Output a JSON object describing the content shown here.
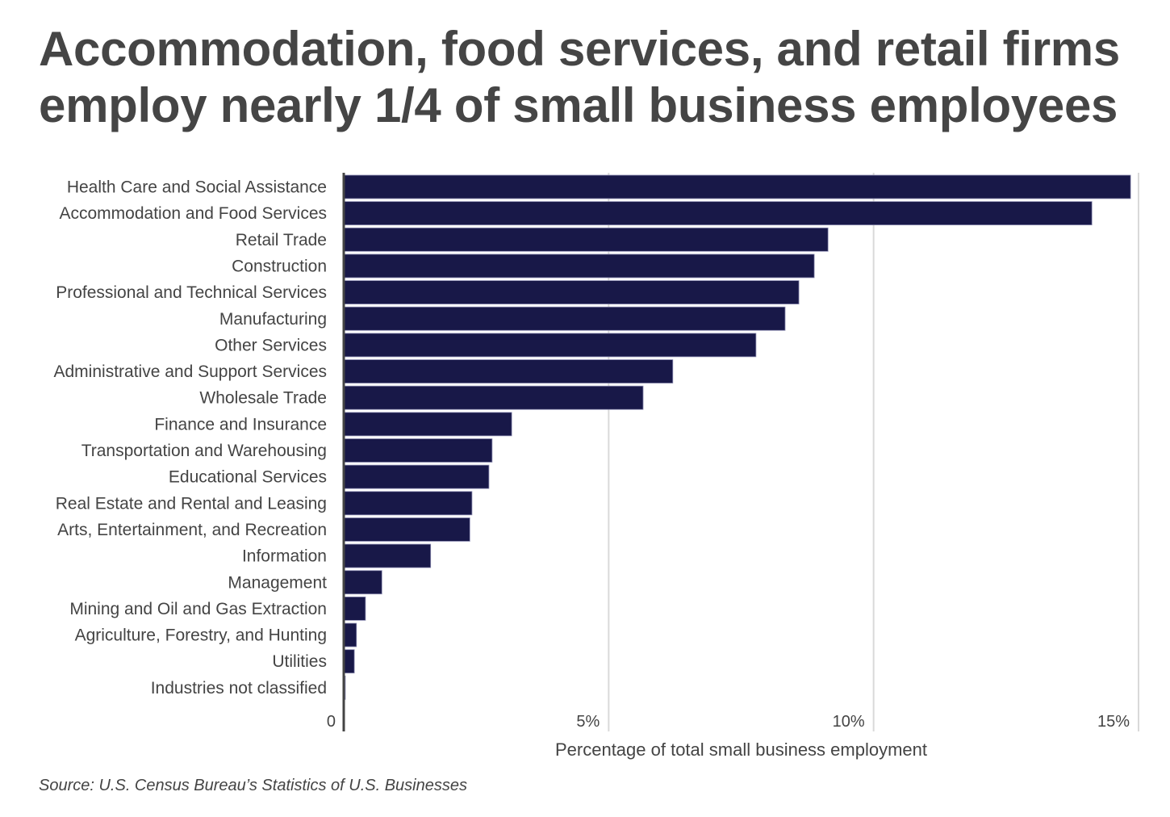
{
  "title": "Accommodation, food services, and retail firms employ nearly 1/4 of small business employees",
  "source": "Source:  U.S. Census Bureau’s Statistics of U.S. Businesses",
  "colors": {
    "bar": "#181848",
    "bar_edge": "#8a8ab0",
    "grid": "#d9d9d9",
    "axis": "#444444",
    "text": "#444444"
  },
  "chart_data": {
    "type": "bar",
    "orientation": "horizontal",
    "title": "Accommodation, food services, and retail firms employ nearly 1/4 of small business employees",
    "xlabel": "Percentage of total small business employment",
    "ylabel": "",
    "xlim": [
      0,
      15
    ],
    "xticks": [
      0,
      5,
      10,
      15
    ],
    "xtick_labels": [
      "0",
      "5%",
      "10%",
      "15%"
    ],
    "grid": true,
    "categories": [
      "Health Care and Social Assistance",
      "Accommodation and Food Services",
      "Retail Trade",
      "Construction",
      "Professional and Technical Services",
      "Manufacturing",
      "Other Services",
      "Administrative and Support Services",
      "Wholesale Trade",
      "Finance and Insurance",
      "Transportation and Warehousing",
      "Educational Services",
      "Real Estate and Rental and Leasing",
      "Arts, Entertainment, and Recreation",
      "Information",
      "Management",
      "Mining and Oil and Gas Extraction",
      "Agriculture, Forestry, and Hunting",
      "Utilities",
      "Industries not classified"
    ],
    "values": [
      14.85,
      14.12,
      9.14,
      8.88,
      8.59,
      8.33,
      7.78,
      6.21,
      5.65,
      3.17,
      2.8,
      2.74,
      2.42,
      2.38,
      1.64,
      0.72,
      0.41,
      0.24,
      0.2,
      0.03
    ],
    "source": "Source:  U.S. Census Bureau’s Statistics of U.S. Businesses"
  }
}
